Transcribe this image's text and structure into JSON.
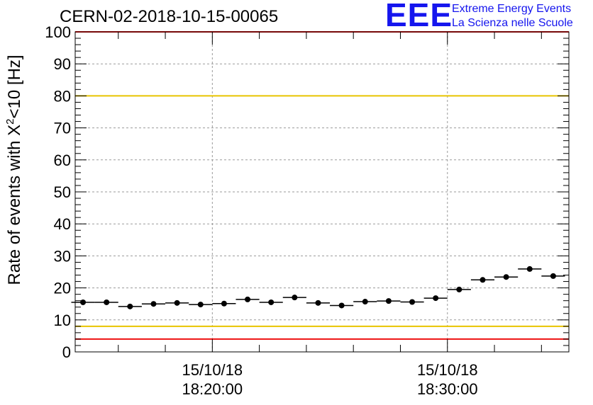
{
  "title": "CERN-02-2018-10-15-00065",
  "logo": {
    "mark": "EEE",
    "line1": "Extreme Energy Events",
    "line2": "La Scienza nelle Scuole",
    "color": "#1515ee"
  },
  "chart_data": {
    "type": "scatter",
    "title": "CERN-02-2018-10-15-00065",
    "ylabel_pre": "Rate of events with X",
    "ylabel_sup": "2",
    "ylabel_post": "<10 [Hz]",
    "ylim": [
      0,
      100
    ],
    "yticks": [
      0,
      10,
      20,
      30,
      40,
      50,
      60,
      70,
      80,
      90,
      100
    ],
    "xlim": [
      "2018-10-15 18:14:10",
      "2018-10-15 18:35:10"
    ],
    "xticks": [
      {
        "t": "2018-10-15 18:20:00",
        "date": "15/10/18",
        "time": "18:20:00"
      },
      {
        "t": "2018-10-15 18:30:00",
        "date": "15/10/18",
        "time": "18:30:00"
      }
    ],
    "grid": true,
    "bin_minutes": 1,
    "series": [
      {
        "x": [
          "18:14:30",
          "18:15:30",
          "18:16:30",
          "18:17:30",
          "18:18:30",
          "18:19:30",
          "18:20:30",
          "18:21:30",
          "18:22:30",
          "18:23:30",
          "18:24:30",
          "18:25:30",
          "18:26:30",
          "18:27:30",
          "18:28:30",
          "18:29:30",
          "18:30:30",
          "18:31:30",
          "18:32:30",
          "18:33:30",
          "18:34:30"
        ],
        "values": [
          15.5,
          15.5,
          14.2,
          15.0,
          15.3,
          14.8,
          15.1,
          16.4,
          15.5,
          17.0,
          15.3,
          14.5,
          15.7,
          15.9,
          15.6,
          16.8,
          19.5,
          22.5,
          23.4,
          25.9,
          23.7
        ]
      }
    ],
    "reference_lines": [
      {
        "y": 100,
        "color": "#ee1111"
      },
      {
        "y": 80,
        "color": "#e8c400"
      },
      {
        "y": 8,
        "color": "#e8c400"
      },
      {
        "y": 4,
        "color": "#ee1111"
      }
    ]
  }
}
